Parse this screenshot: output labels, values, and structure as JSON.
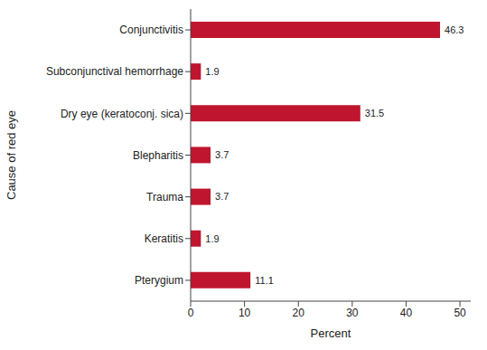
{
  "chart_data": {
    "type": "bar",
    "orientation": "horizontal",
    "xlabel": "Percent",
    "ylabel": "Cause of red eye",
    "categories": [
      "Conjunctivitis",
      "Subconjunctival hemorrhage",
      "Dry eye (keratoconj. sica)",
      "Blepharitis",
      "Trauma",
      "Keratitis",
      "Pterygium"
    ],
    "values": [
      46.3,
      1.9,
      31.5,
      3.7,
      3.7,
      1.9,
      11.1
    ],
    "color": "#c0152f",
    "xlim": [
      0,
      52
    ],
    "xticks": [
      0,
      10,
      20,
      30,
      40,
      50
    ],
    "data_labels": true,
    "grid": false
  }
}
